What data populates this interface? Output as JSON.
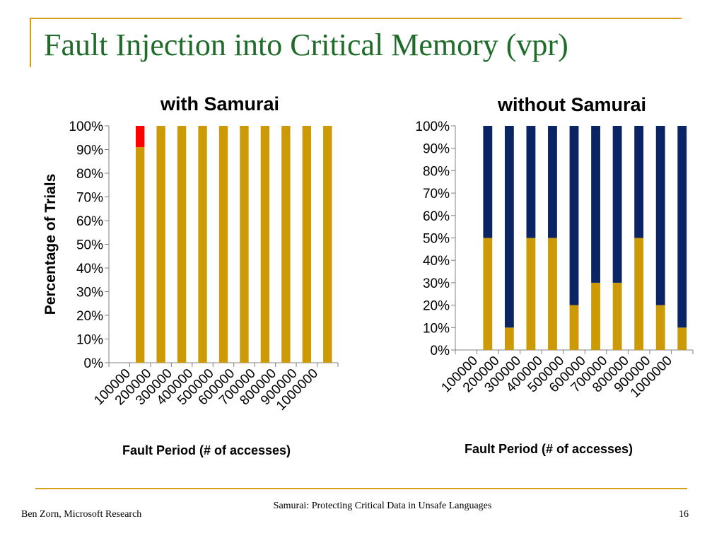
{
  "slide": {
    "title": "Fault Injection into Critical Memory (vpr)",
    "footer_left": "Ben Zorn, Microsoft Research",
    "footer_center": "Samurai: Protecting Critical Data in Unsafe Languages",
    "page_number": "16"
  },
  "colors": {
    "accent": "#d4a017",
    "title": "#1e6b2a",
    "bar_gold": "#cc9a06",
    "bar_red": "#ff0000",
    "bar_navy": "#0b2463"
  },
  "chart_data": [
    {
      "type": "bar",
      "stacked": true,
      "normalized": true,
      "title": "with Samurai",
      "xlabel": "Fault Period (# of accesses)",
      "ylabel": "Percentage of Trials",
      "ylim": [
        0,
        100
      ],
      "ytick_labels": [
        "0%",
        "10%",
        "20%",
        "30%",
        "40%",
        "50%",
        "60%",
        "70%",
        "80%",
        "90%",
        "100%"
      ],
      "categories": [
        "100000",
        "200000",
        "300000",
        "400000",
        "500000",
        "600000",
        "700000",
        "800000",
        "900000",
        "1000000"
      ],
      "series": [
        {
          "color": "#cc9a06",
          "values": [
            91,
            100,
            100,
            100,
            100,
            100,
            100,
            100,
            100,
            100
          ]
        },
        {
          "color": "#ff0000",
          "values": [
            9,
            0,
            0,
            0,
            0,
            0,
            0,
            0,
            0,
            0
          ]
        }
      ]
    },
    {
      "type": "bar",
      "stacked": true,
      "normalized": true,
      "title": "without Samurai",
      "xlabel": "Fault Period (# of accesses)",
      "ylabel": "",
      "ylim": [
        0,
        100
      ],
      "ytick_labels": [
        "0%",
        "10%",
        "20%",
        "30%",
        "40%",
        "50%",
        "60%",
        "70%",
        "80%",
        "90%",
        "100%"
      ],
      "categories": [
        "100000",
        "200000",
        "300000",
        "400000",
        "500000",
        "600000",
        "700000",
        "800000",
        "900000",
        "1000000"
      ],
      "series": [
        {
          "color": "#cc9a06",
          "values": [
            50,
            10,
            50,
            50,
            20,
            30,
            30,
            50,
            20,
            10
          ]
        },
        {
          "color": "#0b2463",
          "values": [
            50,
            90,
            50,
            50,
            80,
            70,
            70,
            50,
            80,
            90
          ]
        }
      ]
    }
  ]
}
